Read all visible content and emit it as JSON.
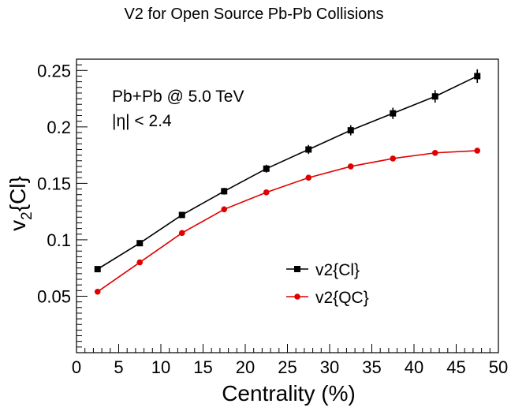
{
  "chart_data": {
    "type": "line",
    "title": "V2 for Open Source Pb-Pb Collisions",
    "xlabel": "Centrality (%)",
    "ylabel": "v2{Cl}",
    "xlim": [
      0,
      50
    ],
    "ylim": [
      0,
      0.26
    ],
    "x_ticks": [
      {
        "value": 0,
        "label": "0"
      },
      {
        "value": 5,
        "label": "5"
      },
      {
        "value": 10,
        "label": "10"
      },
      {
        "value": 15,
        "label": "15"
      },
      {
        "value": 20,
        "label": "20"
      },
      {
        "value": 25,
        "label": "25"
      },
      {
        "value": 30,
        "label": "30"
      },
      {
        "value": 35,
        "label": "35"
      },
      {
        "value": 40,
        "label": "40"
      },
      {
        "value": 45,
        "label": "45"
      },
      {
        "value": 50,
        "label": "50"
      }
    ],
    "y_ticks": [
      {
        "value": 0.05,
        "label": "0.05"
      },
      {
        "value": 0.1,
        "label": "0.1"
      },
      {
        "value": 0.15,
        "label": "0.15"
      },
      {
        "value": 0.2,
        "label": "0.2"
      },
      {
        "value": 0.25,
        "label": "0.25"
      }
    ],
    "x": [
      2.5,
      7.5,
      12.5,
      17.5,
      22.5,
      27.5,
      32.5,
      37.5,
      42.5,
      47.5
    ],
    "series": [
      {
        "name": "v2{Cl}",
        "color": "#000000",
        "marker": "square",
        "values": [
          0.074,
          0.097,
          0.122,
          0.143,
          0.163,
          0.18,
          0.197,
          0.212,
          0.227,
          0.245
        ],
        "errors": [
          0.0015,
          0.002,
          0.0025,
          0.003,
          0.0035,
          0.004,
          0.0045,
          0.005,
          0.0055,
          0.006
        ]
      },
      {
        "name": "v2{QC}",
        "color": "#e00000",
        "marker": "circle",
        "values": [
          0.054,
          0.08,
          0.106,
          0.127,
          0.142,
          0.155,
          0.165,
          0.172,
          0.177,
          0.179
        ],
        "errors": [
          0.0005,
          0.0005,
          0.0005,
          0.0005,
          0.0005,
          0.0005,
          0.0005,
          0.0005,
          0.0005,
          0.0005
        ]
      }
    ],
    "annotations": [
      "Pb+Pb @ 5.0 TeV",
      "|η| < 2.4"
    ],
    "grid": false,
    "legend_position": "bottom-right"
  }
}
